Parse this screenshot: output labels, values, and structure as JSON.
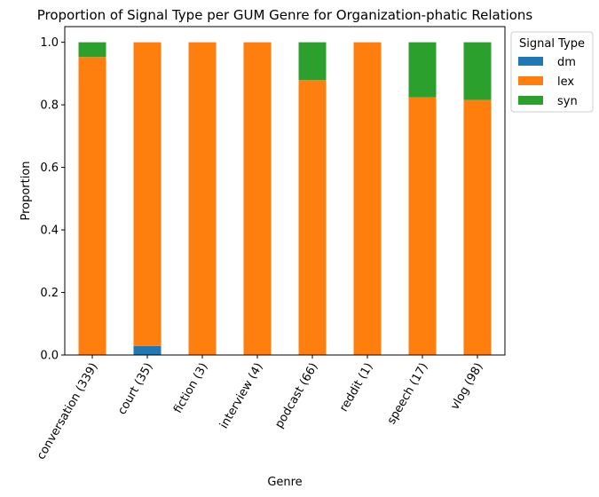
{
  "chart_data": {
    "type": "bar",
    "stacked": true,
    "title": "Proportion of Signal Type per GUM Genre for Organization-phatic Relations",
    "xlabel": "Genre",
    "ylabel": "Proportion",
    "ylim": [
      0,
      1.05
    ],
    "yticks": [
      "0.0",
      "0.2",
      "0.4",
      "0.6",
      "0.8",
      "1.0"
    ],
    "categories": [
      "conversation (339)",
      "court (35)",
      "fiction (3)",
      "interview (4)",
      "podcast (66)",
      "reddit (1)",
      "speech (17)",
      "vlog (98)"
    ],
    "series": [
      {
        "name": "dm",
        "color": "#1f77b4",
        "values": [
          0.0,
          0.029,
          0.0,
          0.0,
          0.0,
          0.0,
          0.0,
          0.0
        ]
      },
      {
        "name": "lex",
        "color": "#ff7f0e",
        "values": [
          0.953,
          0.971,
          1.0,
          1.0,
          0.879,
          1.0,
          0.824,
          0.816
        ]
      },
      {
        "name": "syn",
        "color": "#2ca02c",
        "values": [
          0.047,
          0.0,
          0.0,
          0.0,
          0.121,
          0.0,
          0.176,
          0.184
        ]
      }
    ],
    "legend": {
      "title": "Signal Type",
      "placement": "outside-top-right"
    },
    "grid": false
  }
}
